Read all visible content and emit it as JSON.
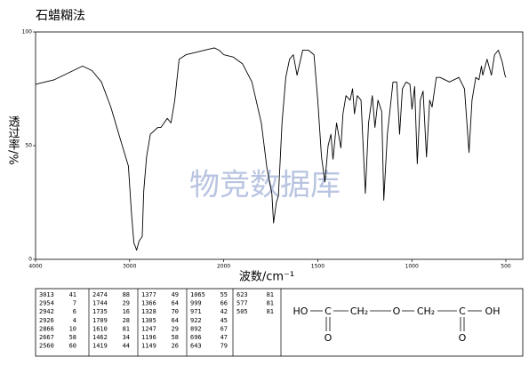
{
  "chart_data": {
    "type": "line",
    "title": "石蜡糊法",
    "xlabel": "波数/cm⁻¹",
    "ylabel": "透过率/%",
    "watermark": "物竞数据库",
    "xlim": [
      4000,
      410
    ],
    "xticks": [
      4000,
      3000,
      2000,
      1500,
      1000,
      500
    ],
    "ylim": [
      0,
      100
    ],
    "yticks": [
      0,
      50,
      100
    ],
    "series": [
      {
        "color": "#000000",
        "x": [
          4000,
          3900,
          3800,
          3700,
          3600,
          3500,
          3400,
          3300,
          3200,
          3100,
          3013,
          2980,
          2954,
          2942,
          2926,
          2900,
          2866,
          2850,
          2820,
          2780,
          2700,
          2667,
          2600,
          2560,
          2520,
          2474,
          2400,
          2300,
          2200,
          2100,
          2050,
          2000,
          1950,
          1900,
          1850,
          1800,
          1770,
          1744,
          1735,
          1720,
          1709,
          1690,
          1670,
          1650,
          1630,
          1610,
          1580,
          1550,
          1520,
          1500,
          1480,
          1462,
          1445,
          1430,
          1419,
          1400,
          1377,
          1366,
          1350,
          1328,
          1315,
          1305,
          1290,
          1270,
          1247,
          1230,
          1210,
          1196,
          1180,
          1160,
          1149,
          1130,
          1100,
          1080,
          1065,
          1050,
          1030,
          1010,
          999,
          985,
          971,
          955,
          940,
          922,
          905,
          892,
          870,
          850,
          800,
          750,
          720,
          696,
          680,
          660,
          643,
          630,
          623,
          600,
          577,
          560,
          540,
          520,
          505,
          500
        ],
        "values": [
          77,
          78,
          79,
          81,
          83,
          85,
          83,
          78,
          67,
          53,
          41,
          20,
          7,
          6,
          4,
          8,
          10,
          30,
          45,
          55,
          58,
          58,
          62,
          60,
          70,
          88,
          90,
          91,
          92,
          93,
          92,
          90,
          89,
          86,
          78,
          60,
          40,
          29,
          16,
          25,
          28,
          60,
          80,
          88,
          90,
          81,
          92,
          92,
          90,
          70,
          45,
          34,
          50,
          55,
          44,
          60,
          49,
          64,
          72,
          70,
          75,
          64,
          72,
          70,
          29,
          60,
          72,
          58,
          70,
          65,
          26,
          55,
          78,
          78,
          55,
          75,
          78,
          77,
          66,
          76,
          42,
          70,
          74,
          45,
          70,
          67,
          80,
          80,
          78,
          80,
          75,
          47,
          70,
          80,
          79,
          85,
          81,
          88,
          81,
          90,
          92,
          87,
          81,
          80
        ]
      }
    ]
  },
  "peak_table": [
    [
      [
        3013,
        41
      ],
      [
        2954,
        7
      ],
      [
        2942,
        6
      ],
      [
        2926,
        4
      ],
      [
        2866,
        10
      ],
      [
        2667,
        58
      ],
      [
        2560,
        60
      ]
    ],
    [
      [
        2474,
        88
      ],
      [
        1744,
        29
      ],
      [
        1735,
        16
      ],
      [
        1709,
        28
      ],
      [
        1610,
        81
      ],
      [
        1462,
        34
      ],
      [
        1419,
        44
      ]
    ],
    [
      [
        1377,
        49
      ],
      [
        1366,
        64
      ],
      [
        1328,
        70
      ],
      [
        1305,
        64
      ],
      [
        1247,
        29
      ],
      [
        1196,
        58
      ],
      [
        1149,
        26
      ]
    ],
    [
      [
        1065,
        55
      ],
      [
        999,
        66
      ],
      [
        971,
        42
      ],
      [
        922,
        45
      ],
      [
        892,
        67
      ],
      [
        696,
        47
      ],
      [
        643,
        79
      ]
    ],
    [
      [
        623,
        81
      ],
      [
        577,
        81
      ],
      [
        505,
        81
      ]
    ]
  ],
  "structure": [
    "HO",
    "C",
    "CH₂",
    "O",
    "CH₂",
    "C",
    "OH",
    "O",
    "O"
  ]
}
